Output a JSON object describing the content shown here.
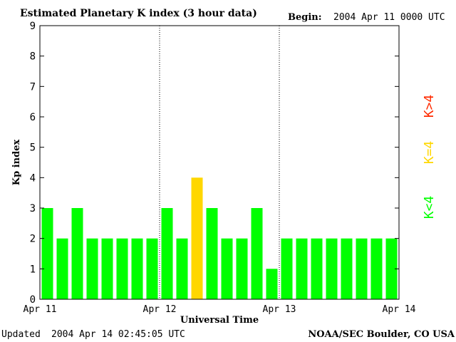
{
  "header": {
    "title": "Estimated Planetary K index (3 hour data)",
    "begin_label": "Begin:",
    "begin_value": "2004 Apr 11 0000 UTC"
  },
  "footer": {
    "updated_label": "Updated",
    "updated_value": "2004 Apr 14 02:45:05 UTC",
    "source": "NOAA/SEC Boulder, CO USA"
  },
  "legend": {
    "low": "K<4",
    "mid": "K=4",
    "high": "K>4"
  },
  "colors": {
    "low": "#00ff00",
    "mid": "#ffd700",
    "high": "#ff2a00",
    "axis": "#000000",
    "background": "#ffffff"
  },
  "chart_data": {
    "type": "bar",
    "title": "Estimated Planetary K index (3 hour data)",
    "xlabel": "Universal Time",
    "ylabel": "Kp index",
    "ylim": [
      0,
      9
    ],
    "y_ticks": [
      "0",
      "1",
      "2",
      "3",
      "4",
      "5",
      "6",
      "7",
      "8",
      "9"
    ],
    "x_ticks": [
      "Apr 11",
      "Apr 12",
      "Apr 13",
      "Apr 14"
    ],
    "day_separators": [
      "Apr 12",
      "Apr 13"
    ],
    "interval_hours": 3,
    "values": [
      3,
      2,
      3,
      2,
      2,
      2,
      2,
      2,
      3,
      2,
      4,
      3,
      2,
      2,
      3,
      1,
      2,
      2,
      2,
      2,
      2,
      2,
      2,
      2
    ],
    "color_rule": "K<4 green, K=4 yellow, K>4 red",
    "grid": false
  }
}
